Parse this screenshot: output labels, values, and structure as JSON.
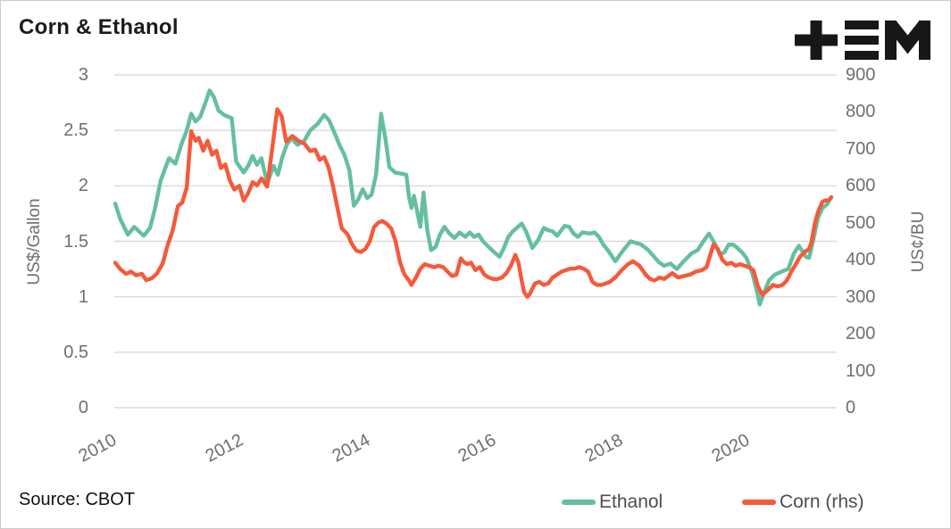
{
  "header": {
    "title": "Corn & Ethanol",
    "logo": "plus-threebars-M brand mark",
    "logo_color": "#171717"
  },
  "footer": {
    "source": "Source: CBOT"
  },
  "legend": {
    "items": [
      {
        "label": "Ethanol",
        "color": "#65BF9E"
      },
      {
        "label": "Corn (rhs)",
        "color": "#F6593A"
      }
    ]
  },
  "chart_data": {
    "type": "line",
    "title": "Corn & Ethanol",
    "grid": "horizontal",
    "grid_color": "#dcdcdc",
    "legend_position": "bottom",
    "x_axis": {
      "ticks": [
        2010,
        2012,
        2014,
        2016,
        2018,
        2020
      ],
      "range": [
        2009.97,
        2021.45
      ]
    },
    "y_axis_left": {
      "label": "US$/Gallon",
      "ticks": [
        0,
        0.5,
        1,
        1.5,
        2,
        2.5,
        3
      ],
      "range": [
        0,
        3
      ]
    },
    "y_axis_right": {
      "label": "US¢/BU",
      "ticks": [
        0,
        100,
        200,
        300,
        400,
        500,
        600,
        700,
        800,
        900
      ],
      "range": [
        0,
        900
      ]
    },
    "series": [
      {
        "name": "Ethanol",
        "axis": "left",
        "color": "#65BF9E",
        "unit": "US$/Gallon",
        "points": [
          [
            2010.0,
            1.84
          ],
          [
            2010.08,
            1.7
          ],
          [
            2010.2,
            1.56
          ],
          [
            2010.3,
            1.63
          ],
          [
            2010.45,
            1.55
          ],
          [
            2010.55,
            1.62
          ],
          [
            2010.63,
            1.8
          ],
          [
            2010.72,
            2.05
          ],
          [
            2010.85,
            2.25
          ],
          [
            2010.95,
            2.2
          ],
          [
            2011.05,
            2.38
          ],
          [
            2011.13,
            2.5
          ],
          [
            2011.2,
            2.65
          ],
          [
            2011.27,
            2.58
          ],
          [
            2011.34,
            2.62
          ],
          [
            2011.42,
            2.74
          ],
          [
            2011.49,
            2.86
          ],
          [
            2011.56,
            2.8
          ],
          [
            2011.63,
            2.68
          ],
          [
            2011.72,
            2.64
          ],
          [
            2011.84,
            2.61
          ],
          [
            2011.91,
            2.22
          ],
          [
            2012.03,
            2.12
          ],
          [
            2012.1,
            2.18
          ],
          [
            2012.17,
            2.27
          ],
          [
            2012.24,
            2.19
          ],
          [
            2012.31,
            2.25
          ],
          [
            2012.4,
            2.02
          ],
          [
            2012.5,
            2.18
          ],
          [
            2012.57,
            2.1
          ],
          [
            2012.64,
            2.26
          ],
          [
            2012.71,
            2.37
          ],
          [
            2012.78,
            2.43
          ],
          [
            2012.88,
            2.37
          ],
          [
            2012.98,
            2.4
          ],
          [
            2013.08,
            2.5
          ],
          [
            2013.2,
            2.56
          ],
          [
            2013.3,
            2.64
          ],
          [
            2013.38,
            2.59
          ],
          [
            2013.47,
            2.47
          ],
          [
            2013.55,
            2.36
          ],
          [
            2013.62,
            2.28
          ],
          [
            2013.7,
            2.14
          ],
          [
            2013.77,
            1.82
          ],
          [
            2013.84,
            1.88
          ],
          [
            2013.91,
            1.97
          ],
          [
            2013.98,
            1.89
          ],
          [
            2014.05,
            1.92
          ],
          [
            2014.12,
            2.1
          ],
          [
            2014.17,
            2.45
          ],
          [
            2014.2,
            2.65
          ],
          [
            2014.27,
            2.42
          ],
          [
            2014.33,
            2.17
          ],
          [
            2014.42,
            2.12
          ],
          [
            2014.52,
            2.11
          ],
          [
            2014.6,
            2.1
          ],
          [
            2014.64,
            1.9
          ],
          [
            2014.68,
            1.8
          ],
          [
            2014.72,
            1.91
          ],
          [
            2014.78,
            1.74
          ],
          [
            2014.82,
            1.63
          ],
          [
            2014.87,
            1.94
          ],
          [
            2014.93,
            1.6
          ],
          [
            2014.99,
            1.42
          ],
          [
            2015.06,
            1.45
          ],
          [
            2015.13,
            1.56
          ],
          [
            2015.2,
            1.63
          ],
          [
            2015.28,
            1.57
          ],
          [
            2015.36,
            1.53
          ],
          [
            2015.44,
            1.58
          ],
          [
            2015.53,
            1.54
          ],
          [
            2015.6,
            1.58
          ],
          [
            2015.67,
            1.54
          ],
          [
            2015.74,
            1.56
          ],
          [
            2015.81,
            1.5
          ],
          [
            2015.88,
            1.46
          ],
          [
            2015.95,
            1.42
          ],
          [
            2016.07,
            1.36
          ],
          [
            2016.14,
            1.44
          ],
          [
            2016.21,
            1.54
          ],
          [
            2016.28,
            1.59
          ],
          [
            2016.42,
            1.66
          ],
          [
            2016.49,
            1.59
          ],
          [
            2016.59,
            1.44
          ],
          [
            2016.68,
            1.51
          ],
          [
            2016.77,
            1.62
          ],
          [
            2016.84,
            1.6
          ],
          [
            2016.91,
            1.59
          ],
          [
            2016.98,
            1.55
          ],
          [
            2017.1,
            1.64
          ],
          [
            2017.17,
            1.63
          ],
          [
            2017.24,
            1.57
          ],
          [
            2017.31,
            1.54
          ],
          [
            2017.38,
            1.58
          ],
          [
            2017.5,
            1.57
          ],
          [
            2017.57,
            1.58
          ],
          [
            2017.64,
            1.54
          ],
          [
            2017.71,
            1.47
          ],
          [
            2017.78,
            1.42
          ],
          [
            2017.9,
            1.32
          ],
          [
            2018.0,
            1.4
          ],
          [
            2018.14,
            1.5
          ],
          [
            2018.31,
            1.47
          ],
          [
            2018.42,
            1.42
          ],
          [
            2018.59,
            1.31
          ],
          [
            2018.67,
            1.28
          ],
          [
            2018.77,
            1.3
          ],
          [
            2018.87,
            1.25
          ],
          [
            2018.98,
            1.32
          ],
          [
            2019.1,
            1.39
          ],
          [
            2019.2,
            1.42
          ],
          [
            2019.29,
            1.5
          ],
          [
            2019.38,
            1.57
          ],
          [
            2019.48,
            1.47
          ],
          [
            2019.55,
            1.38
          ],
          [
            2019.62,
            1.4
          ],
          [
            2019.69,
            1.47
          ],
          [
            2019.76,
            1.47
          ],
          [
            2019.83,
            1.44
          ],
          [
            2019.9,
            1.4
          ],
          [
            2019.97,
            1.35
          ],
          [
            2020.07,
            1.2
          ],
          [
            2020.14,
            1.04
          ],
          [
            2020.18,
            0.93
          ],
          [
            2020.25,
            1.04
          ],
          [
            2020.33,
            1.15
          ],
          [
            2020.42,
            1.2
          ],
          [
            2020.54,
            1.23
          ],
          [
            2020.63,
            1.25
          ],
          [
            2020.72,
            1.39
          ],
          [
            2020.8,
            1.46
          ],
          [
            2020.91,
            1.36
          ],
          [
            2020.96,
            1.35
          ],
          [
            2021.03,
            1.52
          ],
          [
            2021.1,
            1.71
          ],
          [
            2021.17,
            1.8
          ],
          [
            2021.24,
            1.83
          ],
          [
            2021.31,
            1.9
          ]
        ]
      },
      {
        "name": "Corn (rhs)",
        "axis": "right",
        "color": "#F6593A",
        "unit": "US¢/BU",
        "points": [
          [
            2010.0,
            392
          ],
          [
            2010.08,
            375
          ],
          [
            2010.17,
            362
          ],
          [
            2010.25,
            368
          ],
          [
            2010.33,
            358
          ],
          [
            2010.42,
            362
          ],
          [
            2010.49,
            345
          ],
          [
            2010.58,
            350
          ],
          [
            2010.66,
            363
          ],
          [
            2010.75,
            390
          ],
          [
            2010.83,
            440
          ],
          [
            2010.91,
            480
          ],
          [
            2010.99,
            545
          ],
          [
            2011.06,
            555
          ],
          [
            2011.13,
            595
          ],
          [
            2011.2,
            748
          ],
          [
            2011.27,
            722
          ],
          [
            2011.32,
            730
          ],
          [
            2011.39,
            695
          ],
          [
            2011.46,
            722
          ],
          [
            2011.53,
            684
          ],
          [
            2011.6,
            695
          ],
          [
            2011.67,
            648
          ],
          [
            2011.74,
            658
          ],
          [
            2011.81,
            615
          ],
          [
            2011.88,
            590
          ],
          [
            2011.96,
            600
          ],
          [
            2012.03,
            560
          ],
          [
            2012.1,
            580
          ],
          [
            2012.17,
            610
          ],
          [
            2012.24,
            601
          ],
          [
            2012.31,
            620
          ],
          [
            2012.4,
            598
          ],
          [
            2012.48,
            700
          ],
          [
            2012.56,
            807
          ],
          [
            2012.63,
            788
          ],
          [
            2012.7,
            720
          ],
          [
            2012.8,
            735
          ],
          [
            2012.89,
            722
          ],
          [
            2012.99,
            714
          ],
          [
            2013.08,
            694
          ],
          [
            2013.16,
            698
          ],
          [
            2013.23,
            670
          ],
          [
            2013.3,
            678
          ],
          [
            2013.37,
            650
          ],
          [
            2013.44,
            600
          ],
          [
            2013.51,
            540
          ],
          [
            2013.58,
            485
          ],
          [
            2013.67,
            469
          ],
          [
            2013.74,
            442
          ],
          [
            2013.81,
            425
          ],
          [
            2013.88,
            421
          ],
          [
            2013.95,
            429
          ],
          [
            2014.02,
            449
          ],
          [
            2014.09,
            489
          ],
          [
            2014.16,
            501
          ],
          [
            2014.22,
            505
          ],
          [
            2014.29,
            497
          ],
          [
            2014.36,
            485
          ],
          [
            2014.43,
            449
          ],
          [
            2014.5,
            392
          ],
          [
            2014.57,
            360
          ],
          [
            2014.64,
            344
          ],
          [
            2014.68,
            332
          ],
          [
            2014.75,
            352
          ],
          [
            2014.82,
            376
          ],
          [
            2014.89,
            388
          ],
          [
            2014.96,
            384
          ],
          [
            2015.04,
            380
          ],
          [
            2015.11,
            384
          ],
          [
            2015.18,
            380
          ],
          [
            2015.25,
            368
          ],
          [
            2015.32,
            356
          ],
          [
            2015.39,
            360
          ],
          [
            2015.46,
            404
          ],
          [
            2015.5,
            395
          ],
          [
            2015.56,
            388
          ],
          [
            2015.62,
            392
          ],
          [
            2015.69,
            372
          ],
          [
            2015.76,
            380
          ],
          [
            2015.83,
            360
          ],
          [
            2015.9,
            352
          ],
          [
            2015.97,
            348
          ],
          [
            2016.04,
            348
          ],
          [
            2016.11,
            352
          ],
          [
            2016.18,
            364
          ],
          [
            2016.25,
            384
          ],
          [
            2016.32,
            413
          ],
          [
            2016.37,
            392
          ],
          [
            2016.42,
            344
          ],
          [
            2016.46,
            312
          ],
          [
            2016.51,
            300
          ],
          [
            2016.55,
            308
          ],
          [
            2016.63,
            336
          ],
          [
            2016.7,
            340
          ],
          [
            2016.77,
            332
          ],
          [
            2016.84,
            336
          ],
          [
            2016.91,
            352
          ],
          [
            2016.98,
            360
          ],
          [
            2017.05,
            368
          ],
          [
            2017.12,
            372
          ],
          [
            2017.19,
            376
          ],
          [
            2017.26,
            376
          ],
          [
            2017.33,
            380
          ],
          [
            2017.4,
            376
          ],
          [
            2017.47,
            368
          ],
          [
            2017.54,
            340
          ],
          [
            2017.61,
            332
          ],
          [
            2017.68,
            332
          ],
          [
            2017.75,
            336
          ],
          [
            2017.81,
            340
          ],
          [
            2017.9,
            352
          ],
          [
            2018.0,
            372
          ],
          [
            2018.1,
            388
          ],
          [
            2018.18,
            396
          ],
          [
            2018.28,
            384
          ],
          [
            2018.38,
            360
          ],
          [
            2018.45,
            348
          ],
          [
            2018.52,
            344
          ],
          [
            2018.6,
            352
          ],
          [
            2018.67,
            348
          ],
          [
            2018.8,
            364
          ],
          [
            2018.89,
            352
          ],
          [
            2018.98,
            356
          ],
          [
            2019.08,
            360
          ],
          [
            2019.17,
            368
          ],
          [
            2019.27,
            372
          ],
          [
            2019.34,
            380
          ],
          [
            2019.45,
            441
          ],
          [
            2019.52,
            429
          ],
          [
            2019.59,
            400
          ],
          [
            2019.66,
            388
          ],
          [
            2019.73,
            392
          ],
          [
            2019.8,
            384
          ],
          [
            2019.87,
            388
          ],
          [
            2019.94,
            384
          ],
          [
            2020.01,
            380
          ],
          [
            2020.08,
            372
          ],
          [
            2020.15,
            330
          ],
          [
            2020.22,
            305
          ],
          [
            2020.32,
            320
          ],
          [
            2020.39,
            332
          ],
          [
            2020.46,
            328
          ],
          [
            2020.54,
            332
          ],
          [
            2020.61,
            344
          ],
          [
            2020.68,
            368
          ],
          [
            2020.75,
            388
          ],
          [
            2020.82,
            409
          ],
          [
            2020.89,
            421
          ],
          [
            2020.96,
            429
          ],
          [
            2021.0,
            449
          ],
          [
            2021.05,
            497
          ],
          [
            2021.1,
            529
          ],
          [
            2021.17,
            557
          ],
          [
            2021.22,
            561
          ],
          [
            2021.26,
            560
          ],
          [
            2021.31,
            568
          ]
        ]
      }
    ]
  }
}
